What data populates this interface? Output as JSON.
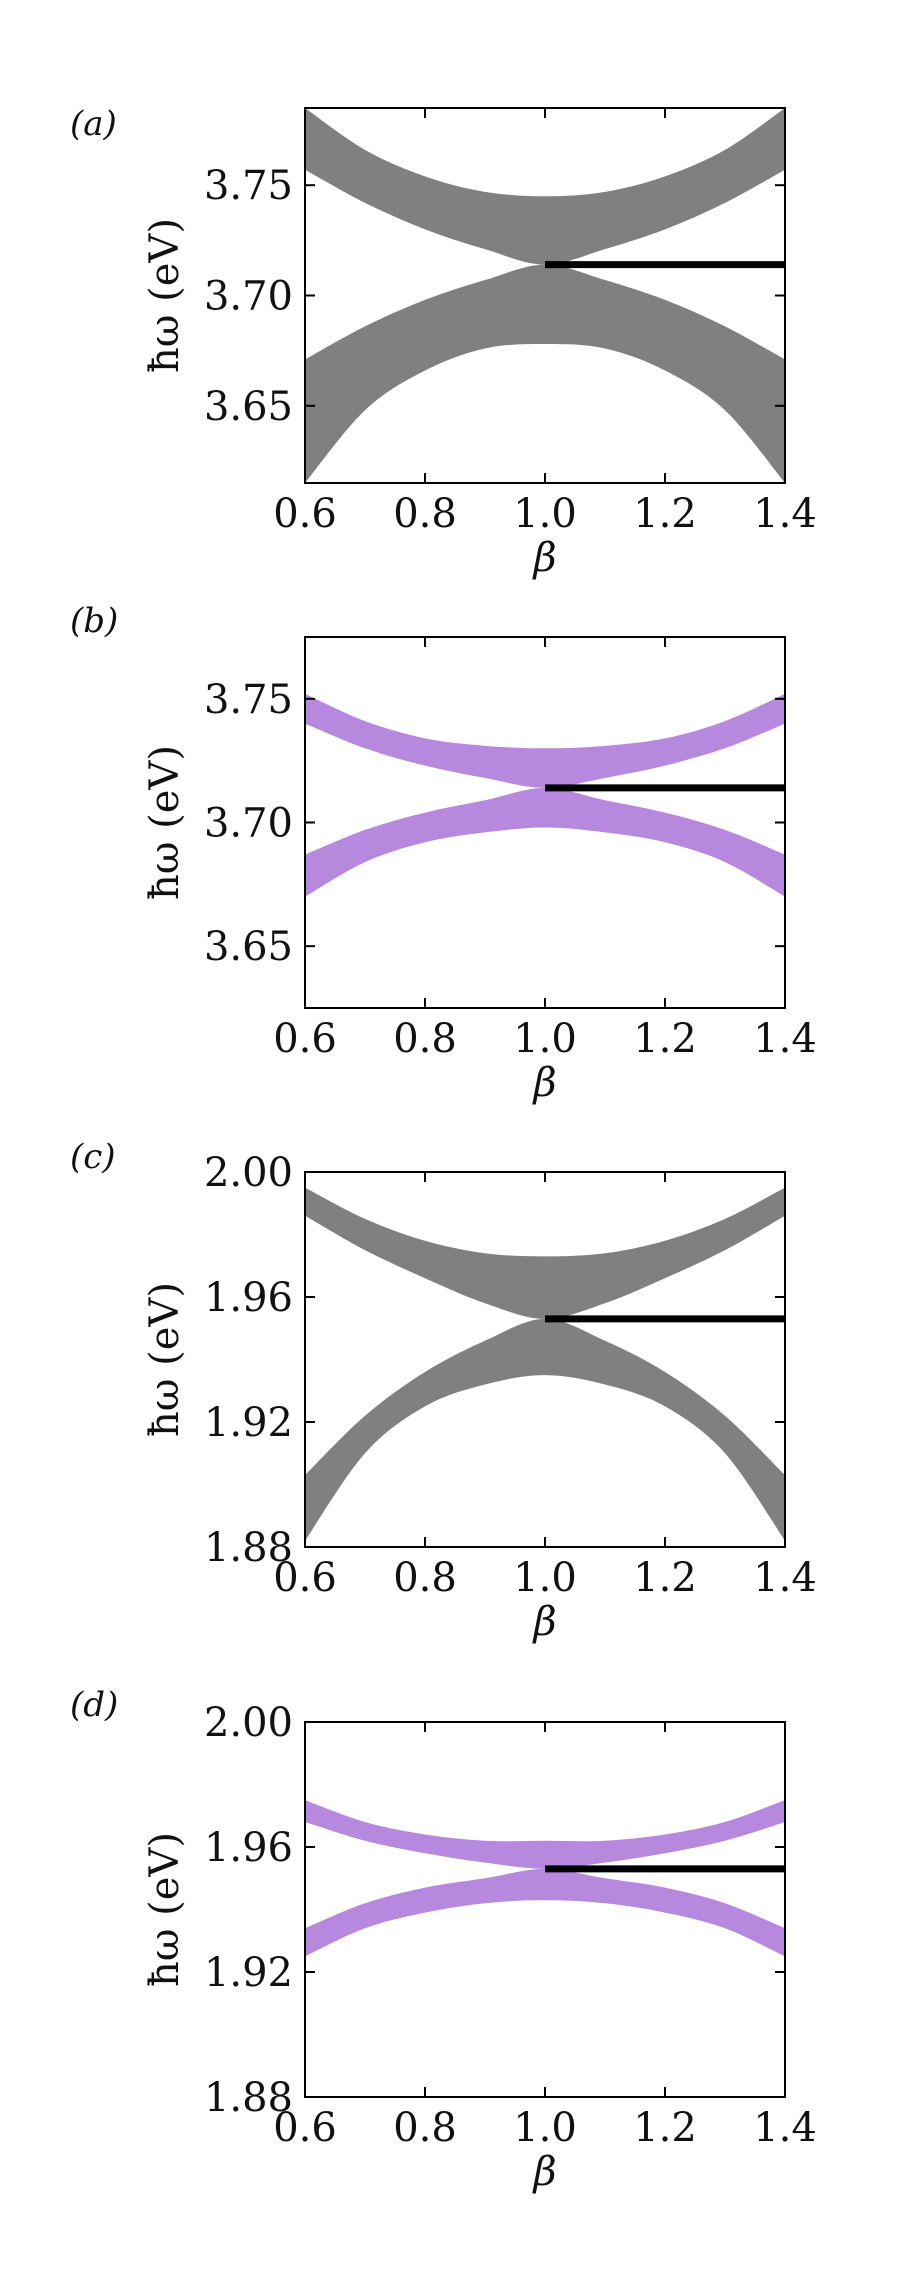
{
  "chart_data": [
    {
      "type": "area",
      "panel_label": "(a)",
      "xlabel": "β",
      "ylabel": "ħω (eV)",
      "xlim": [
        0.6,
        1.4
      ],
      "ylim": [
        3.615,
        3.785
      ],
      "xticks": [
        0.6,
        0.8,
        1.0,
        1.2,
        1.4
      ],
      "xtick_labels": [
        "0.6",
        "0.8",
        "1.0",
        "1.2",
        "1.4"
      ],
      "yticks": [
        3.65,
        3.7,
        3.75
      ],
      "ytick_labels": [
        "3.65",
        "3.70",
        "3.75"
      ],
      "grid": false,
      "bands": [
        {
          "color": "#808080",
          "x": [
            0.6,
            0.7,
            0.8,
            0.9,
            1.0,
            1.1,
            1.2,
            1.3,
            1.4
          ],
          "upper_top": [
            3.785,
            3.766,
            3.754,
            3.747,
            3.745,
            3.747,
            3.754,
            3.766,
            3.785
          ],
          "upper_bottom": [
            3.757,
            3.742,
            3.73,
            3.721,
            3.714,
            3.721,
            3.73,
            3.742,
            3.757
          ],
          "lower_top": [
            3.671,
            3.686,
            3.698,
            3.707,
            3.714,
            3.707,
            3.698,
            3.686,
            3.671
          ],
          "lower_bottom": [
            3.615,
            3.648,
            3.666,
            3.676,
            3.678,
            3.676,
            3.666,
            3.648,
            3.615
          ]
        }
      ],
      "lines": [
        {
          "color": "#000000",
          "x": [
            1.0,
            1.4
          ],
          "y": [
            3.714,
            3.714
          ]
        }
      ]
    },
    {
      "type": "area",
      "panel_label": "(b)",
      "xlabel": "β",
      "ylabel": "ħω (eV)",
      "xlim": [
        0.6,
        1.4
      ],
      "ylim": [
        3.625,
        3.775
      ],
      "xticks": [
        0.6,
        0.8,
        1.0,
        1.2,
        1.4
      ],
      "xtick_labels": [
        "0.6",
        "0.8",
        "1.0",
        "1.2",
        "1.4"
      ],
      "yticks": [
        3.65,
        3.7,
        3.75
      ],
      "ytick_labels": [
        "3.65",
        "3.70",
        "3.75"
      ],
      "grid": false,
      "bands": [
        {
          "color": "#b789de",
          "x": [
            0.6,
            0.7,
            0.8,
            0.9,
            1.0,
            1.1,
            1.2,
            1.3,
            1.4
          ],
          "upper_top": [
            3.752,
            3.741,
            3.734,
            3.731,
            3.73,
            3.731,
            3.734,
            3.741,
            3.752
          ],
          "upper_bottom": [
            3.74,
            3.73,
            3.723,
            3.718,
            3.714,
            3.718,
            3.723,
            3.73,
            3.74
          ],
          "lower_top": [
            3.687,
            3.697,
            3.704,
            3.709,
            3.714,
            3.709,
            3.704,
            3.697,
            3.687
          ],
          "lower_bottom": [
            3.67,
            3.684,
            3.692,
            3.696,
            3.698,
            3.696,
            3.692,
            3.684,
            3.67
          ]
        }
      ],
      "lines": [
        {
          "color": "#000000",
          "x": [
            1.0,
            1.4
          ],
          "y": [
            3.714,
            3.714
          ]
        }
      ]
    },
    {
      "type": "area",
      "panel_label": "(c)",
      "xlabel": "β",
      "ylabel": "ħω (eV)",
      "xlim": [
        0.6,
        1.4
      ],
      "ylim": [
        1.88,
        2.0
      ],
      "xticks": [
        0.6,
        0.8,
        1.0,
        1.2,
        1.4
      ],
      "xtick_labels": [
        "0.6",
        "0.8",
        "1.0",
        "1.2",
        "1.4"
      ],
      "yticks": [
        1.88,
        1.92,
        1.96,
        2.0
      ],
      "ytick_labels": [
        "1.88",
        "1.92",
        "1.96",
        "2.00"
      ],
      "grid": false,
      "bands": [
        {
          "color": "#808080",
          "x": [
            0.6,
            0.7,
            0.8,
            0.9,
            1.0,
            1.1,
            1.2,
            1.3,
            1.4
          ],
          "upper_top": [
            1.995,
            1.985,
            1.978,
            1.974,
            1.973,
            1.974,
            1.978,
            1.985,
            1.995
          ],
          "upper_bottom": [
            1.986,
            1.975,
            1.966,
            1.958,
            1.953,
            1.958,
            1.966,
            1.975,
            1.986
          ],
          "lower_top": [
            1.903,
            1.922,
            1.936,
            1.946,
            1.953,
            1.946,
            1.936,
            1.922,
            1.903
          ],
          "lower_bottom": [
            1.882,
            1.91,
            1.925,
            1.932,
            1.935,
            1.932,
            1.925,
            1.91,
            1.882
          ]
        }
      ],
      "lines": [
        {
          "color": "#000000",
          "x": [
            1.0,
            1.4
          ],
          "y": [
            1.953,
            1.953
          ]
        }
      ]
    },
    {
      "type": "area",
      "panel_label": "(d)",
      "xlabel": "β",
      "ylabel": "ħω (eV)",
      "xlim": [
        0.6,
        1.4
      ],
      "ylim": [
        1.88,
        2.0
      ],
      "xticks": [
        0.6,
        0.8,
        1.0,
        1.2,
        1.4
      ],
      "xtick_labels": [
        "0.6",
        "0.8",
        "1.0",
        "1.2",
        "1.4"
      ],
      "yticks": [
        1.88,
        1.92,
        1.96,
        2.0
      ],
      "ytick_labels": [
        "1.88",
        "1.92",
        "1.96",
        "2.00"
      ],
      "grid": false,
      "bands": [
        {
          "color": "#b789de",
          "x": [
            0.6,
            0.7,
            0.8,
            0.9,
            1.0,
            1.1,
            1.2,
            1.3,
            1.4
          ],
          "upper_top": [
            1.975,
            1.968,
            1.964,
            1.962,
            1.962,
            1.962,
            1.964,
            1.968,
            1.975
          ],
          "upper_bottom": [
            1.968,
            1.962,
            1.958,
            1.955,
            1.953,
            1.955,
            1.958,
            1.962,
            1.968
          ],
          "lower_top": [
            1.934,
            1.942,
            1.947,
            1.95,
            1.953,
            1.95,
            1.947,
            1.942,
            1.934
          ],
          "lower_bottom": [
            1.925,
            1.934,
            1.939,
            1.942,
            1.943,
            1.942,
            1.939,
            1.934,
            1.925
          ]
        }
      ],
      "lines": [
        {
          "color": "#000000",
          "x": [
            1.0,
            1.4
          ],
          "y": [
            1.953,
            1.953
          ]
        }
      ]
    }
  ]
}
